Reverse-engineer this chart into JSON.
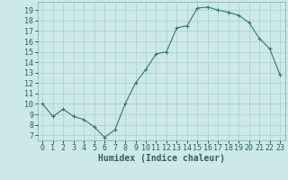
{
  "x": [
    0,
    1,
    2,
    3,
    4,
    5,
    6,
    7,
    8,
    9,
    10,
    11,
    12,
    13,
    14,
    15,
    16,
    17,
    18,
    19,
    20,
    21,
    22,
    23
  ],
  "y": [
    10.0,
    8.8,
    9.5,
    8.8,
    8.5,
    7.8,
    6.8,
    7.5,
    10.0,
    12.0,
    13.3,
    14.8,
    15.0,
    17.3,
    17.5,
    19.2,
    19.3,
    19.0,
    18.8,
    18.5,
    17.8,
    16.3,
    15.3,
    12.8
  ],
  "xlabel": "Humidex (Indice chaleur)",
  "xlim": [
    -0.5,
    23.5
  ],
  "ylim": [
    6.5,
    19.8
  ],
  "yticks": [
    7,
    8,
    9,
    10,
    11,
    12,
    13,
    14,
    15,
    16,
    17,
    18,
    19
  ],
  "xticks": [
    0,
    1,
    2,
    3,
    4,
    5,
    6,
    7,
    8,
    9,
    10,
    11,
    12,
    13,
    14,
    15,
    16,
    17,
    18,
    19,
    20,
    21,
    22,
    23
  ],
  "line_color": "#2d7a6e",
  "marker": "+",
  "bg_color": "#cce8e8",
  "grid_color": "#aacece",
  "xlabel_fontsize": 7,
  "tick_fontsize": 6
}
